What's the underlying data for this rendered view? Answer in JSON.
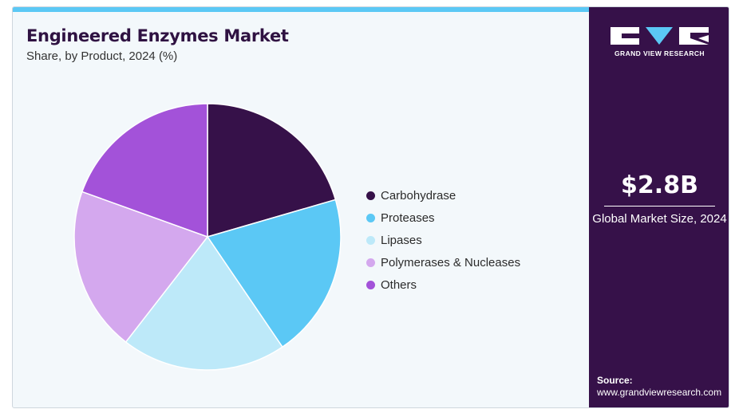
{
  "colors": {
    "accent_bar": "#5bc8f5",
    "panel_background": "#361149",
    "title_color": "#2f1242"
  },
  "header": {
    "title": "Engineered Enzymes Market",
    "subtitle": "Share, by Product, 2024 (%)"
  },
  "chart_data": {
    "type": "pie",
    "title": "Engineered Enzymes Market",
    "subtitle": "Share, by Product, 2024 (%)",
    "start_angle_deg": 0,
    "direction": "clockwise",
    "legend_position": "right",
    "slices": [
      {
        "label": "Carbohydrase",
        "value": 20.5,
        "color": "#361149"
      },
      {
        "label": "Proteases",
        "value": 20.0,
        "color": "#5bc8f5"
      },
      {
        "label": "Lipases",
        "value": 20.0,
        "color": "#bde9f9"
      },
      {
        "label": "Polymerases & Nucleases",
        "value": 20.0,
        "color": "#d4a8ee"
      },
      {
        "label": "Others",
        "value": 19.5,
        "color": "#a352d9"
      }
    ]
  },
  "side_panel": {
    "brand_text": "GRAND VIEW RESEARCH",
    "logo_icon": "gvr-logo-icon",
    "stat_value": "$2.8B",
    "stat_label": "Global Market Size, 2024",
    "source_label": "Source:",
    "source_url": "www.grandviewresearch.com"
  }
}
